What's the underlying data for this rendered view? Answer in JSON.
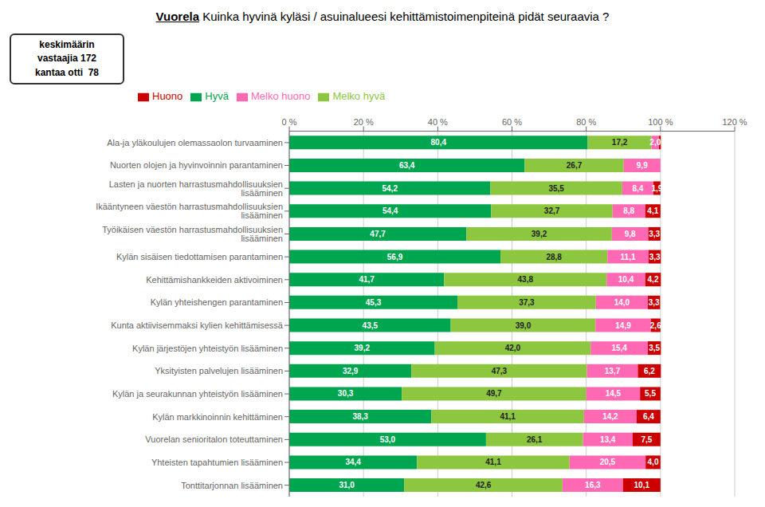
{
  "chart_data": {
    "type": "bar",
    "orientation": "horizontal",
    "stacked": true,
    "title": "Vuorela Kuinka hyvinä kyläsi / asuinalueesi kehittämistoimenpiteinä pidät seuraavia ?",
    "annotations": [
      "keskimäärin\nvastaajia 172\nkantaa otti  78"
    ],
    "categories": [
      "Ala-ja yläkoulujen olemassaolon turvaaminen",
      "Nuorten olojen ja hyvinvoinnin parantaminen",
      "Lasten ja nuorten harrastusmahdollisuuksien lisääminen",
      "Ikääntyneen väestön harrastusmahdollisuuksien lisääminen",
      "Työikäisen väestön harrastusmahdollisuuksien lisääminen",
      "Kylän sisäisen tiedottamisen parantaminen",
      "Kehittämishankkeiden aktivoiminen",
      "Kylän yhteishengen parantaminen",
      "Kunta aktiivisemmaksi kylien kehittämisessä",
      "Kylän järjestöjen yhteistyön lisääminen",
      "Yksityisten palvelujen lisääminen",
      "Kylän ja seurakunnan yhteistyön lisääminen",
      "Kylän markkinoinnin kehittäminen",
      "Vuorelan senioritalon toteuttaminen",
      "Yhteisten tapahtumien lisääminen",
      "Tonttitarjonnan lisääminen"
    ],
    "series": [
      {
        "name": "Hyvä",
        "color": "#00A550",
        "values": [
          80.4,
          63.4,
          54.2,
          54.4,
          47.7,
          56.9,
          41.7,
          45.3,
          43.5,
          39.2,
          32.9,
          30.3,
          38.3,
          53.0,
          34.4,
          31.0
        ],
        "value_labels": [
          "80,4",
          "63,4",
          "54,2",
          "54,4",
          "47,7",
          "56,9",
          "41,7",
          "45,3",
          "43,5",
          "39,2",
          "32,9",
          "30,3",
          "38,3",
          "53,0",
          "34,4",
          "31,0"
        ]
      },
      {
        "name": "Melko hyvä",
        "color": "#8DC63F",
        "values": [
          17.2,
          26.7,
          35.5,
          32.7,
          39.2,
          28.8,
          43.8,
          37.3,
          39.0,
          42.0,
          47.3,
          49.7,
          41.1,
          26.1,
          41.1,
          42.6
        ],
        "value_labels": [
          "17,2",
          "26,7",
          "35,5",
          "32,7",
          "39,2",
          "28,8",
          "43,8",
          "37,3",
          "39,0",
          "42,0",
          "47,3",
          "49,7",
          "41,1",
          "26,1",
          "41,1",
          "42,6"
        ]
      },
      {
        "name": "Melko huono",
        "color": "#FF69B4",
        "values": [
          2.0,
          9.9,
          8.4,
          8.8,
          9.8,
          11.1,
          10.4,
          14.0,
          14.9,
          15.4,
          13.7,
          14.5,
          14.2,
          13.4,
          20.5,
          16.3
        ],
        "value_labels": [
          "2,0",
          "9,9",
          "8,4",
          "8,8",
          "9,8",
          "11,1",
          "10,4",
          "14,0",
          "14,9",
          "15,4",
          "13,7",
          "14,5",
          "14,2",
          "13,4",
          "20,5",
          "16,3"
        ]
      },
      {
        "name": "Huono",
        "color": "#CC0000",
        "values": [
          0.5,
          0.0,
          1.9,
          4.1,
          3.3,
          3.3,
          4.2,
          3.3,
          2.6,
          3.5,
          6.2,
          5.5,
          6.4,
          7.5,
          4.0,
          10.1
        ],
        "value_labels": [
          null,
          null,
          "1,9",
          "4,1",
          "3,3",
          "3,3",
          "4,2",
          "3,3",
          "2,6",
          "3,5",
          "6,2",
          "5,5",
          "6,4",
          "7,5",
          "4,0",
          "10,1"
        ]
      }
    ],
    "data_labels": true,
    "xlim": [
      0,
      120
    ],
    "xticks": [
      {
        "value": 0,
        "label": "0 %"
      },
      {
        "value": 20,
        "label": "20 %"
      },
      {
        "value": 40,
        "label": "40 %"
      },
      {
        "value": 60,
        "label": "60 %"
      },
      {
        "value": 80,
        "label": "80 %"
      },
      {
        "value": 100,
        "label": "100 %"
      },
      {
        "value": 120,
        "label": "120 %"
      }
    ],
    "grid": true,
    "legend": "upper left"
  }
}
